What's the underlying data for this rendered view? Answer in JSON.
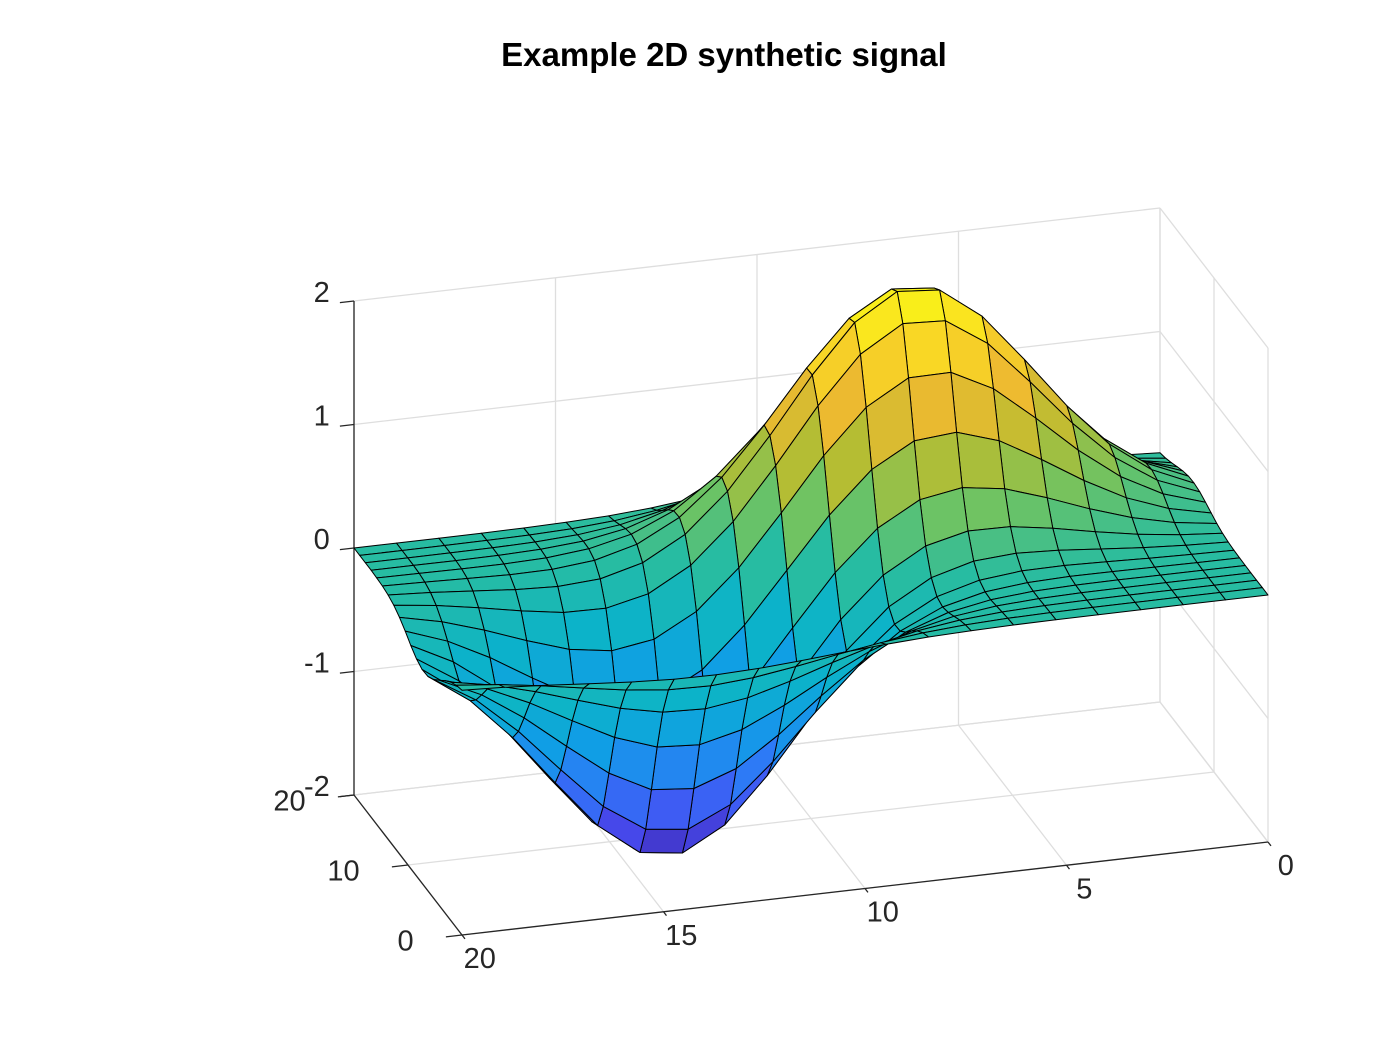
{
  "chart_data": {
    "type": "surface",
    "title": "Example 2D synthetic signal",
    "xlabel": "",
    "ylabel": "",
    "zlabel": "",
    "xlim": [
      0,
      20
    ],
    "ylim": [
      0,
      20
    ],
    "zlim": [
      -2,
      2
    ],
    "x_ticks": [
      "0",
      "5",
      "10",
      "15",
      "20"
    ],
    "y_ticks": [
      "0",
      "10",
      "20"
    ],
    "z_ticks": [
      "-2",
      "-1",
      "0",
      "1",
      "2"
    ],
    "grid": true,
    "colormap": "parula",
    "grid_size": [
      20,
      20
    ],
    "function": "two gaussian features on zero baseline: peak z=2.0 near (x=7, y=14), trough z=-2.0 near (x=14, y=7)",
    "features": [
      {
        "kind": "peak",
        "x": 7,
        "y": 14,
        "z": 2.0
      },
      {
        "kind": "trough",
        "x": 14,
        "y": 7,
        "z": -2.0
      }
    ],
    "colors": {
      "background": "#ffffff",
      "grid": "#dedede",
      "axis": "#262626",
      "edge": "#000000"
    }
  }
}
